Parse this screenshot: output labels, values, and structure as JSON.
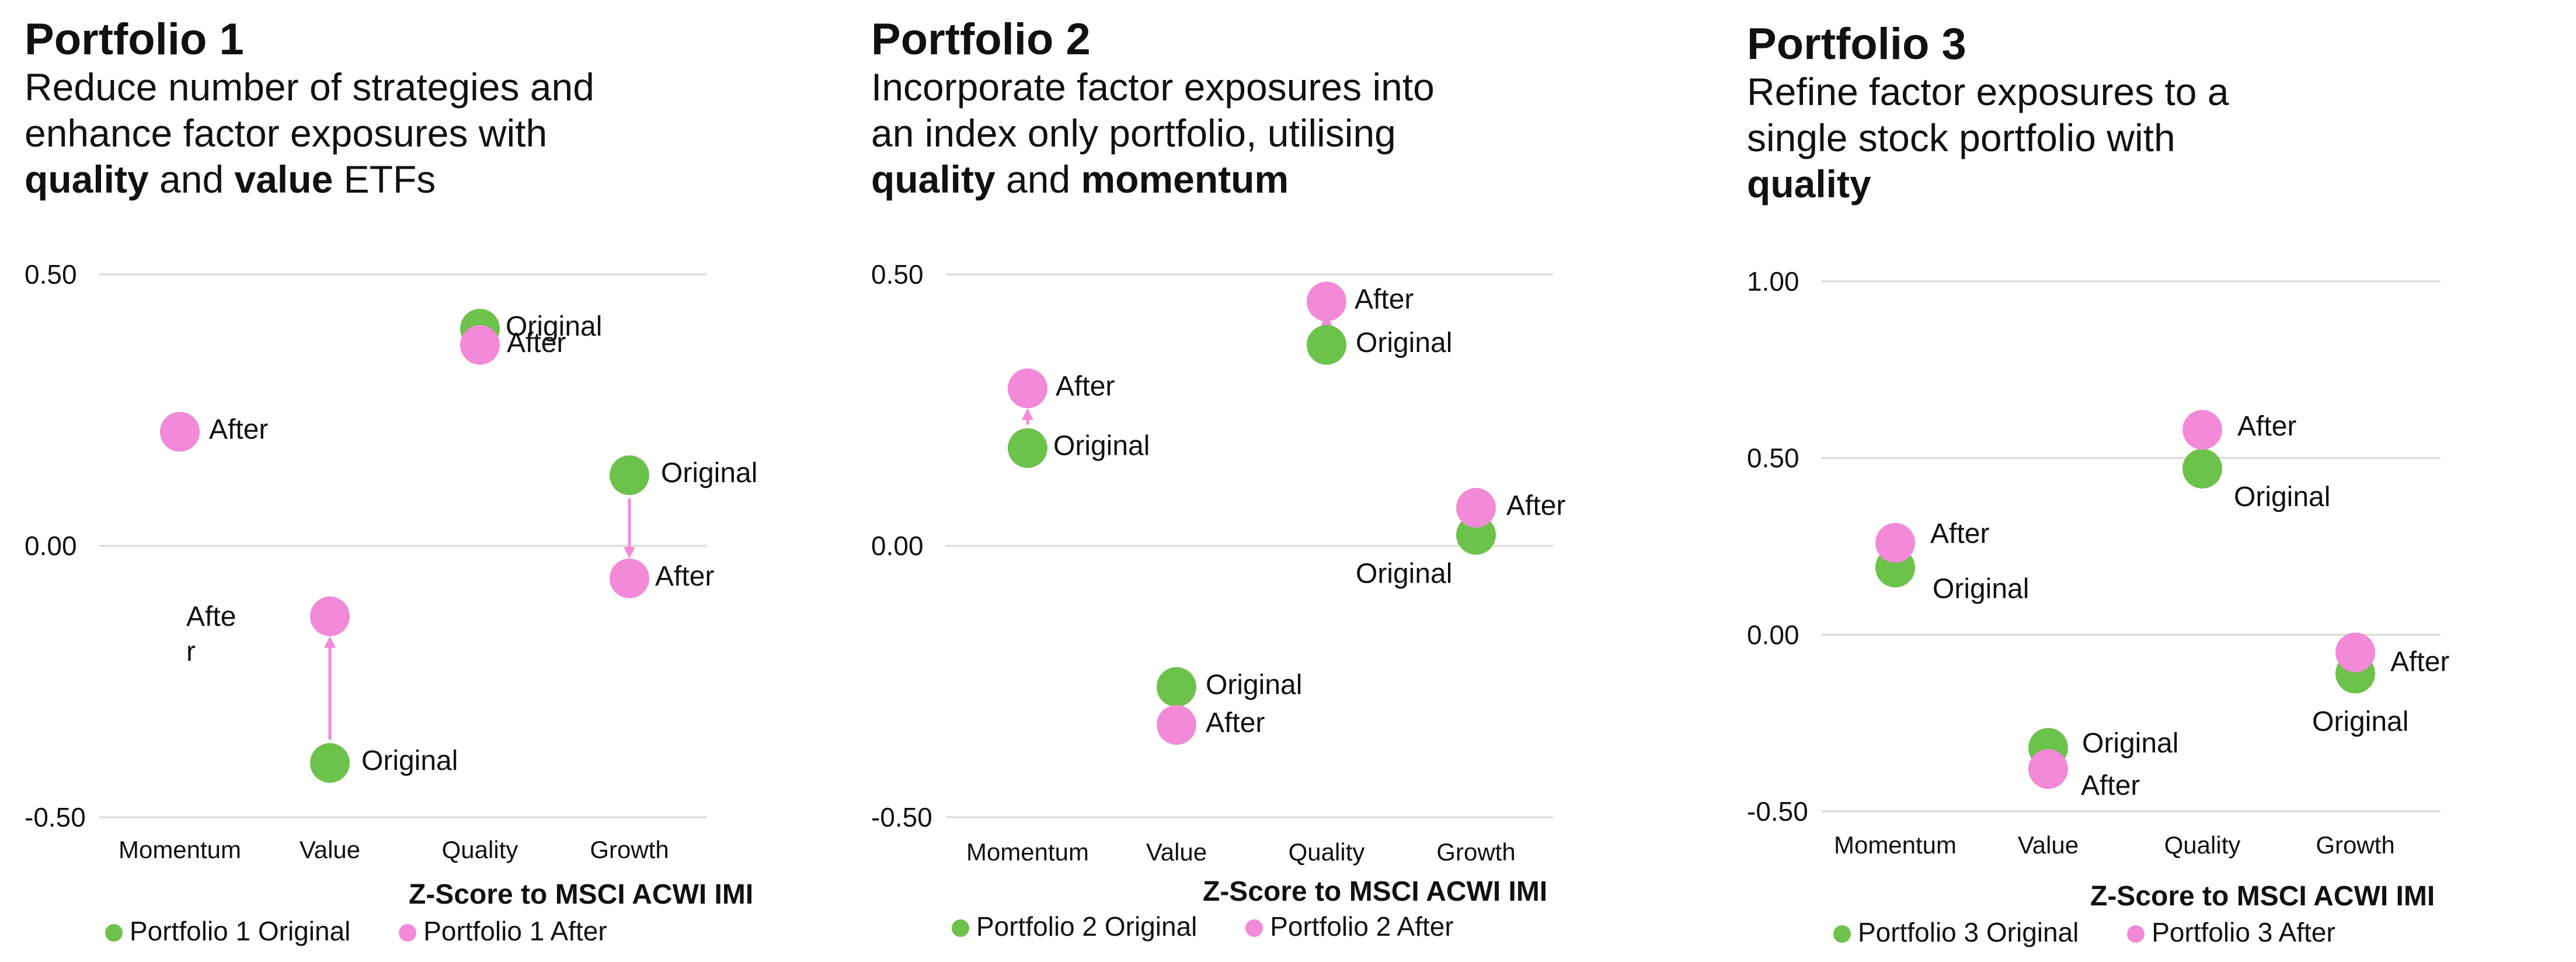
{
  "colors": {
    "original": "#6cc24a",
    "after": "#f28ad8",
    "grid": "#d9d9d9",
    "arrow": "#f28ad8"
  },
  "caption": "Z-Score to MSCI ACWI IMI",
  "panels": [
    {
      "title": "Portfolio 1",
      "subtitle": [
        [
          {
            "t": "Reduce number of strategies and",
            "b": false
          }
        ],
        [
          {
            "t": "enhance factor exposures with",
            "b": false
          }
        ],
        [
          {
            "t": "quality",
            "b": true
          },
          {
            "t": " and ",
            "b": false
          },
          {
            "t": "value",
            "b": true
          },
          {
            "t": " ETFs",
            "b": false
          }
        ]
      ],
      "legend": {
        "original": "Portfolio 1 Original",
        "after": "Portfolio 1 After"
      }
    },
    {
      "title": "Portfolio 2",
      "subtitle": [
        [
          {
            "t": "Incorporate factor exposures into",
            "b": false
          }
        ],
        [
          {
            "t": "an index only portfolio, utilising",
            "b": false
          }
        ],
        [
          {
            "t": "quality",
            "b": true
          },
          {
            "t": " and ",
            "b": false
          },
          {
            "t": "momentum",
            "b": true
          }
        ]
      ],
      "legend": {
        "original": "Portfolio 2 Original",
        "after": "Portfolio 2 After"
      }
    },
    {
      "title": "Portfolio 3",
      "subtitle": [
        [
          {
            "t": "Refine factor exposures to a",
            "b": false
          }
        ],
        [
          {
            "t": "single stock portfolio with",
            "b": false
          }
        ],
        [
          {
            "t": "quality",
            "b": true
          }
        ]
      ],
      "legend": {
        "original": "Portfolio 3 Original",
        "after": "Portfolio 3 After"
      }
    }
  ],
  "chart_data": [
    {
      "type": "scatter",
      "title": "Portfolio 1",
      "xlabel": "Z-Score to MSCI ACWI IMI",
      "categories": [
        "Momentum",
        "Value",
        "Quality",
        "Growth"
      ],
      "ylim": [
        -0.5,
        0.5
      ],
      "yticks": [
        0.5,
        0.0,
        -0.5
      ],
      "ytick_labels": [
        "0.50",
        "0.00",
        "-0.50"
      ],
      "grid": true,
      "legend": "bottom",
      "series": [
        {
          "name": "Portfolio 1 Original",
          "values": [
            0.21,
            -0.4,
            0.4,
            0.13
          ]
        },
        {
          "name": "Portfolio 1 After",
          "values": [
            0.21,
            -0.13,
            0.37,
            -0.06
          ]
        }
      ],
      "annotations": [
        {
          "text": "After",
          "cat": 0,
          "series": 1
        },
        {
          "text": "Original",
          "cat": 1,
          "series": 0
        },
        {
          "text": "Afte",
          "text2": "r",
          "cat": 1,
          "series": 1
        },
        {
          "text": "Original",
          "cat": 2,
          "series": 0
        },
        {
          "text": "After",
          "cat": 2,
          "series": 1
        },
        {
          "text": "Original",
          "cat": 3,
          "series": 0
        },
        {
          "text": "After",
          "cat": 3,
          "series": 1
        }
      ],
      "arrows": [
        1,
        3
      ]
    },
    {
      "type": "scatter",
      "title": "Portfolio 2",
      "xlabel": "Z-Score to MSCI ACWI IMI",
      "categories": [
        "Momentum",
        "Value",
        "Quality",
        "Growth"
      ],
      "ylim": [
        -0.5,
        0.5
      ],
      "yticks": [
        0.5,
        0.0,
        -0.5
      ],
      "ytick_labels": [
        "0.50",
        "0.00",
        "-0.50"
      ],
      "grid": true,
      "legend": "bottom",
      "series": [
        {
          "name": "Portfolio 2 Original",
          "values": [
            0.18,
            -0.26,
            0.37,
            0.02
          ]
        },
        {
          "name": "Portfolio 2 After",
          "values": [
            0.29,
            -0.33,
            0.45,
            0.07
          ]
        }
      ],
      "annotations": [
        {
          "text": "Original",
          "cat": 0,
          "series": 0
        },
        {
          "text": "After",
          "cat": 0,
          "series": 1
        },
        {
          "text": "Original",
          "cat": 1,
          "series": 0
        },
        {
          "text": "After",
          "cat": 1,
          "series": 1
        },
        {
          "text": "Original",
          "cat": 2,
          "series": 0
        },
        {
          "text": "After",
          "cat": 2,
          "series": 1
        },
        {
          "text": "Original",
          "cat": 3,
          "series": 0
        },
        {
          "text": "After",
          "cat": 3,
          "series": 1
        }
      ],
      "arrows": [
        0,
        2
      ]
    },
    {
      "type": "scatter",
      "title": "Portfolio 3",
      "xlabel": "Z-Score to MSCI ACWI IMI",
      "categories": [
        "Momentum",
        "Value",
        "Quality",
        "Growth"
      ],
      "ylim": [
        -0.5,
        1.0
      ],
      "yticks": [
        1.0,
        0.5,
        0.0,
        -0.5
      ],
      "ytick_labels": [
        "1.00",
        "0.50",
        "0.00",
        "-0.50"
      ],
      "grid": true,
      "legend": "bottom",
      "series": [
        {
          "name": "Portfolio 3 Original",
          "values": [
            0.19,
            -0.32,
            0.47,
            -0.11
          ]
        },
        {
          "name": "Portfolio 3 After",
          "values": [
            0.26,
            -0.38,
            0.58,
            -0.05
          ]
        }
      ],
      "annotations": [
        {
          "text": "Original",
          "cat": 0,
          "series": 0
        },
        {
          "text": "After",
          "cat": 0,
          "series": 1
        },
        {
          "text": "Original",
          "cat": 1,
          "series": 0
        },
        {
          "text": "After",
          "cat": 1,
          "series": 1
        },
        {
          "text": "Original",
          "cat": 2,
          "series": 0
        },
        {
          "text": "After",
          "cat": 2,
          "series": 1
        },
        {
          "text": "Original",
          "cat": 3,
          "series": 0
        },
        {
          "text": "After",
          "cat": 3,
          "series": 1
        }
      ],
      "arrows": []
    }
  ]
}
